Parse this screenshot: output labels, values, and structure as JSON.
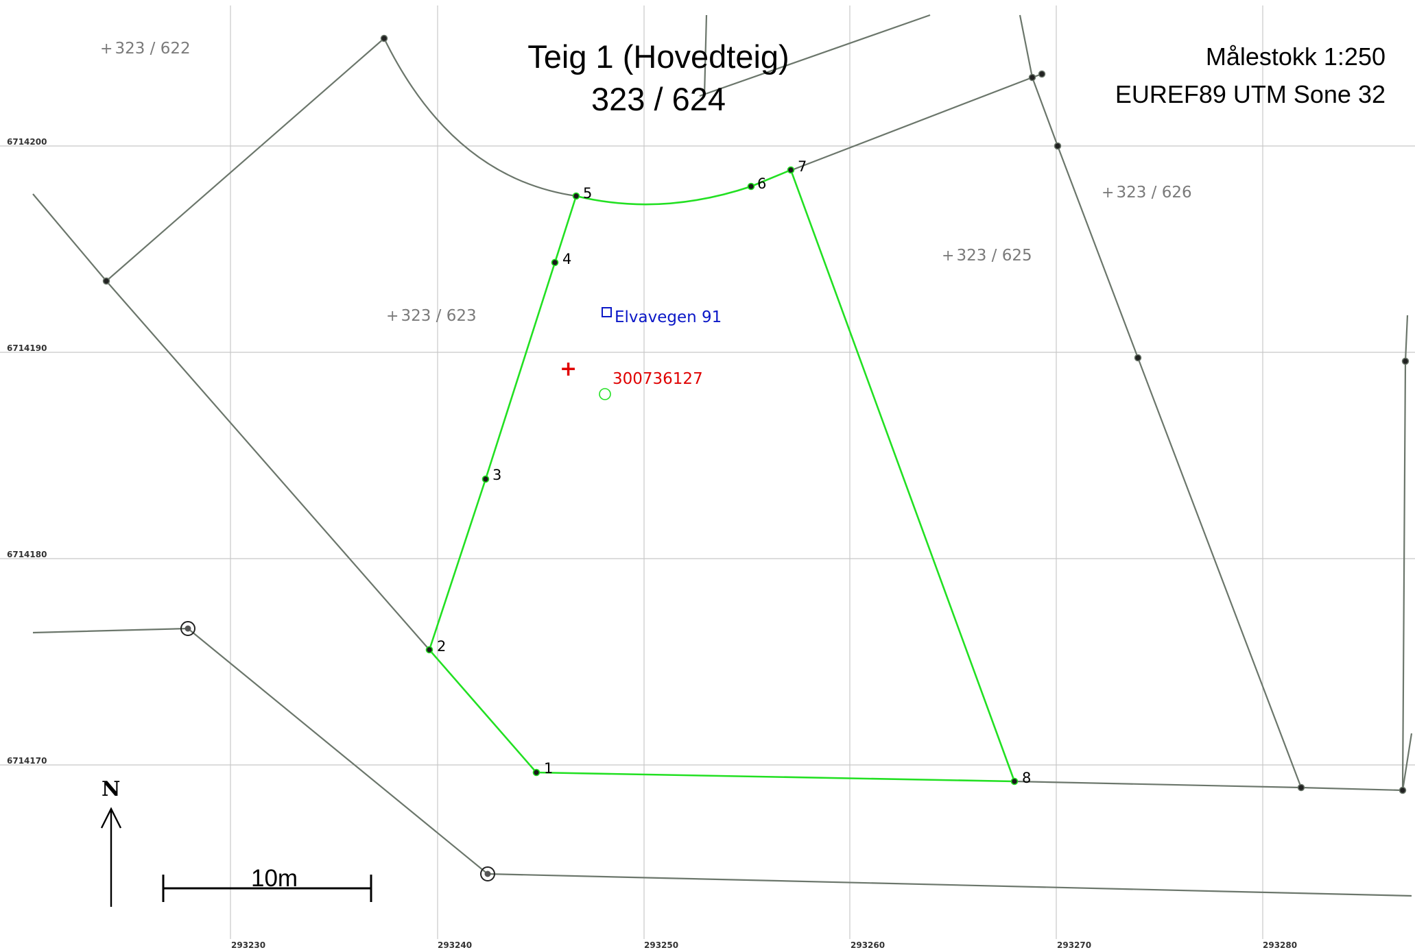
{
  "title": {
    "line1": "Teig 1 (Hovedteig)",
    "line2": "323 / 624"
  },
  "scale_info": {
    "scale": "Målestokk 1:250",
    "crs": "EUREF89 UTM Sone 32"
  },
  "grid": {
    "northing_labels": [
      "6714200",
      "6714190",
      "6714180",
      "6714170"
    ],
    "easting_labels": [
      "293230",
      "293240",
      "293250",
      "293260",
      "293270",
      "293280"
    ]
  },
  "parcels": [
    {
      "id": "323 / 622"
    },
    {
      "id": "323 / 623"
    },
    {
      "id": "323 / 625"
    },
    {
      "id": "323 / 626"
    }
  ],
  "vertices": [
    "1",
    "2",
    "3",
    "4",
    "5",
    "6",
    "7",
    "8"
  ],
  "address": {
    "label": "Elvavegen 91"
  },
  "building": {
    "id": "300736127"
  },
  "scale_bar": {
    "label": "10m"
  },
  "north_arrow": {
    "label": "N"
  },
  "colors": {
    "parcel_boundary": "#22e022",
    "neighbor_boundary": "#6b766b",
    "grid": "#c8c8c8",
    "address": "#0a17c7",
    "building": "#e00000",
    "parcel_label": "#7a7a7a"
  }
}
